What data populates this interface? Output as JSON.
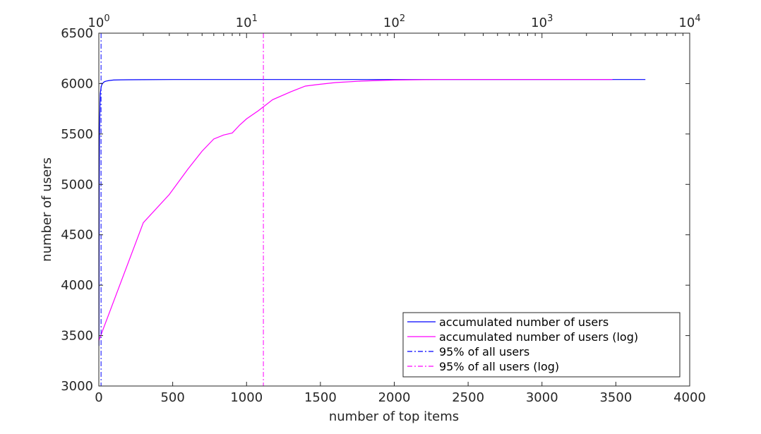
{
  "chart_data": {
    "type": "line",
    "xlabel": "number of top items",
    "ylabel": "number of users",
    "xlim": [
      0,
      4000
    ],
    "ylim": [
      3000,
      6500
    ],
    "x_ticks": [
      0,
      500,
      1000,
      1500,
      2000,
      2500,
      3000,
      3500,
      4000
    ],
    "y_ticks": [
      3000,
      3500,
      4000,
      4500,
      5000,
      5500,
      6000,
      6500
    ],
    "top_axis": {
      "scale": "log",
      "xlim": [
        1,
        10000
      ],
      "ticks": [
        {
          "value": 1,
          "base": "10",
          "exp": "0"
        },
        {
          "value": 10,
          "base": "10",
          "exp": "1"
        },
        {
          "value": 100,
          "base": "10",
          "exp": "2"
        },
        {
          "value": 1000,
          "base": "10",
          "exp": "3"
        },
        {
          "value": 10000,
          "base": "10",
          "exp": "4"
        }
      ]
    },
    "grid": false,
    "legend_position": "bottom-right",
    "series": [
      {
        "name": "accumulated number of users",
        "color": "#0000ff",
        "style": "solid",
        "axis": "bottom",
        "x": [
          1,
          3,
          5,
          8,
          10,
          15,
          20,
          30,
          40,
          50,
          70,
          100,
          150,
          200,
          300,
          500,
          1000,
          2000,
          3000,
          3700
        ],
        "y": [
          3400,
          5000,
          5500,
          5800,
          5900,
          5960,
          5990,
          6010,
          6020,
          6025,
          6030,
          6035,
          6037,
          6038,
          6039,
          6040,
          6040,
          6040,
          6040,
          6040
        ]
      },
      {
        "name": "accumulated number of users (log)",
        "color": "#ff00ff",
        "style": "solid",
        "axis": "top",
        "x": [
          1,
          2,
          3,
          4,
          5,
          6,
          7,
          8,
          9,
          10,
          12,
          15,
          20,
          25,
          30,
          40,
          60,
          100,
          200,
          500,
          1000,
          3000
        ],
        "y": [
          3450,
          4620,
          4900,
          5150,
          5330,
          5450,
          5490,
          5510,
          5590,
          5650,
          5730,
          5840,
          5920,
          5975,
          5990,
          6010,
          6025,
          6035,
          6040,
          6040,
          6040,
          6040
        ]
      },
      {
        "name": "95% of all users",
        "color": "#0000ff",
        "style": "dashdot",
        "axis": "bottom",
        "vline_x": 15
      },
      {
        "name": "95% of all users (log)",
        "color": "#ff00ff",
        "style": "dashdot",
        "axis": "top",
        "vline_x": 13
      }
    ]
  }
}
